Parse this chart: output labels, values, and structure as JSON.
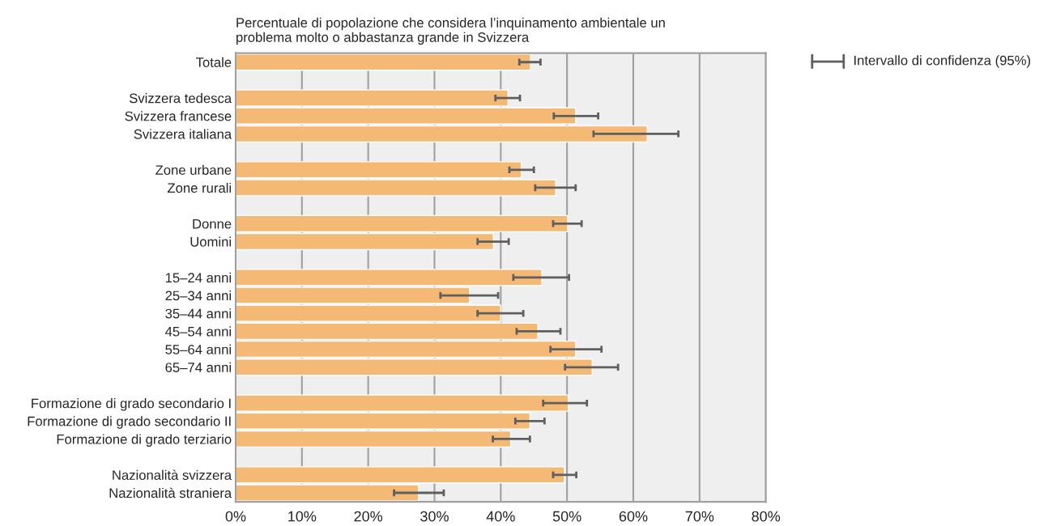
{
  "chart_data": {
    "type": "bar",
    "orientation": "horizontal",
    "title": "Percentuale di popolazione che considera l’inquinamento ambientale un\nproblema molto o abbastanza grande in Svizzera",
    "categories": [
      "Totale",
      null,
      "Svizzera tedesca",
      "Svizzera francese",
      "Svizzera italiana",
      null,
      "Zone urbane",
      "Zone rurali",
      null,
      "Donne",
      "Uomini",
      null,
      "15–24 anni",
      "25–34 anni",
      "35–44 anni",
      "45–54 anni",
      "55–64 anni",
      "65–74 anni",
      null,
      "Formazione di grado secondario I",
      "Formazione di grado secondario II",
      "Formazione di grado terziario",
      null,
      "Nazionalità svizzera",
      "Nazionalità straniera"
    ],
    "values": [
      44.5,
      null,
      41.1,
      51.3,
      62.1,
      null,
      43.1,
      48.3,
      null,
      50.1,
      38.9,
      null,
      46.2,
      35.3,
      40.0,
      45.6,
      51.3,
      53.8,
      null,
      50.2,
      44.4,
      41.5,
      null,
      49.6,
      27.6
    ],
    "errors": [
      [
        42.8,
        46.0
      ],
      null,
      [
        39.2,
        42.9
      ],
      [
        48.0,
        54.7
      ],
      [
        54.0,
        66.8
      ],
      null,
      [
        41.3,
        45.0
      ],
      [
        45.2,
        51.3
      ],
      null,
      [
        47.9,
        52.2
      ],
      [
        36.5,
        41.2
      ],
      null,
      [
        41.9,
        50.3
      ],
      [
        30.9,
        39.6
      ],
      [
        36.5,
        43.4
      ],
      [
        42.4,
        49.0
      ],
      [
        47.5,
        55.2
      ],
      [
        49.7,
        57.7
      ],
      null,
      [
        46.4,
        53.0
      ],
      [
        42.2,
        46.6
      ],
      [
        38.8,
        44.4
      ],
      null,
      [
        47.9,
        51.4
      ],
      [
        23.9,
        31.4
      ]
    ],
    "color": "#f4b975",
    "xlim": [
      0,
      80
    ],
    "xticks": [
      {
        "value": 0,
        "label": "0%"
      },
      {
        "value": 10,
        "label": "10%"
      },
      {
        "value": 20,
        "label": "20%"
      },
      {
        "value": 30,
        "label": "30%"
      },
      {
        "value": 40,
        "label": "40%"
      },
      {
        "value": 50,
        "label": "50%"
      },
      {
        "value": 60,
        "label": "60%"
      },
      {
        "value": 70,
        "label": "70%"
      },
      {
        "value": 80,
        "label": "80%"
      }
    ],
    "grid": "x",
    "legend_title": "Intervallo di confidenza (95%)"
  }
}
